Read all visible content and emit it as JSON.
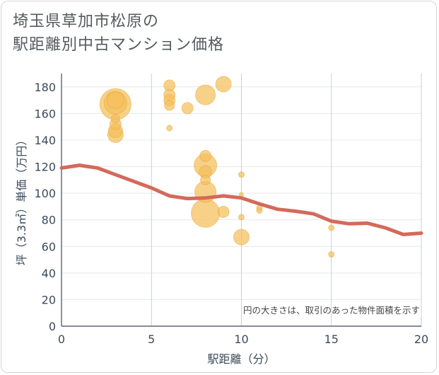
{
  "header": {
    "title_line1": "埼玉県草加市松原の",
    "title_line2": "駅距離別中古マンション価格"
  },
  "chart_data": {
    "type": "scatter",
    "title": "埼玉県草加市松原の駅距離別中古マンション価格",
    "xlabel": "駅距離（分）",
    "ylabel": "坪（3.3㎡）単価（万円）",
    "xlim": [
      0,
      20
    ],
    "ylim": [
      0,
      190
    ],
    "xticks": [
      0,
      5,
      10,
      15,
      20
    ],
    "yticks": [
      0,
      20,
      40,
      60,
      80,
      100,
      120,
      140,
      160,
      180
    ],
    "grid": true,
    "note": "円の大きさは、取引のあった物件面積を示す",
    "bubble_color": "#f5bf5b",
    "line_color": "#d36a5a",
    "points": [
      {
        "x": 3,
        "y": 167,
        "size": 22
      },
      {
        "x": 3,
        "y": 168,
        "size": 16
      },
      {
        "x": 3,
        "y": 170,
        "size": 12
      },
      {
        "x": 3,
        "y": 156,
        "size": 6
      },
      {
        "x": 3,
        "y": 152,
        "size": 8
      },
      {
        "x": 3,
        "y": 147,
        "size": 10
      },
      {
        "x": 3,
        "y": 144,
        "size": 11
      },
      {
        "x": 6,
        "y": 181,
        "size": 8
      },
      {
        "x": 6,
        "y": 174,
        "size": 8
      },
      {
        "x": 6,
        "y": 170,
        "size": 8
      },
      {
        "x": 6,
        "y": 166,
        "size": 7
      },
      {
        "x": 6,
        "y": 149,
        "size": 4
      },
      {
        "x": 7,
        "y": 164,
        "size": 8
      },
      {
        "x": 8,
        "y": 174,
        "size": 14
      },
      {
        "x": 8,
        "y": 128,
        "size": 8
      },
      {
        "x": 8,
        "y": 121,
        "size": 16
      },
      {
        "x": 8,
        "y": 116,
        "size": 9
      },
      {
        "x": 8,
        "y": 110,
        "size": 7
      },
      {
        "x": 8,
        "y": 101,
        "size": 15
      },
      {
        "x": 8,
        "y": 85,
        "size": 20
      },
      {
        "x": 9,
        "y": 182,
        "size": 11
      },
      {
        "x": 9,
        "y": 86,
        "size": 8
      },
      {
        "x": 10,
        "y": 114,
        "size": 4
      },
      {
        "x": 10,
        "y": 99,
        "size": 3
      },
      {
        "x": 10,
        "y": 82,
        "size": 4
      },
      {
        "x": 10,
        "y": 67,
        "size": 11
      },
      {
        "x": 11,
        "y": 89,
        "size": 4
      },
      {
        "x": 11,
        "y": 87,
        "size": 4
      },
      {
        "x": 15,
        "y": 74,
        "size": 4
      },
      {
        "x": 15,
        "y": 54,
        "size": 4
      }
    ],
    "trend": [
      {
        "x": 0,
        "y": 119
      },
      {
        "x": 1,
        "y": 121
      },
      {
        "x": 2,
        "y": 119
      },
      {
        "x": 3,
        "y": 114
      },
      {
        "x": 4,
        "y": 109
      },
      {
        "x": 5,
        "y": 104
      },
      {
        "x": 6,
        "y": 98
      },
      {
        "x": 7,
        "y": 96
      },
      {
        "x": 8,
        "y": 96.5
      },
      {
        "x": 9,
        "y": 98
      },
      {
        "x": 10,
        "y": 96.5
      },
      {
        "x": 11,
        "y": 92
      },
      {
        "x": 12,
        "y": 88
      },
      {
        "x": 13,
        "y": 86.5
      },
      {
        "x": 14,
        "y": 84.5
      },
      {
        "x": 15,
        "y": 79
      },
      {
        "x": 16,
        "y": 77
      },
      {
        "x": 17,
        "y": 77.5
      },
      {
        "x": 18,
        "y": 74
      },
      {
        "x": 19,
        "y": 69
      },
      {
        "x": 20,
        "y": 70
      }
    ]
  }
}
